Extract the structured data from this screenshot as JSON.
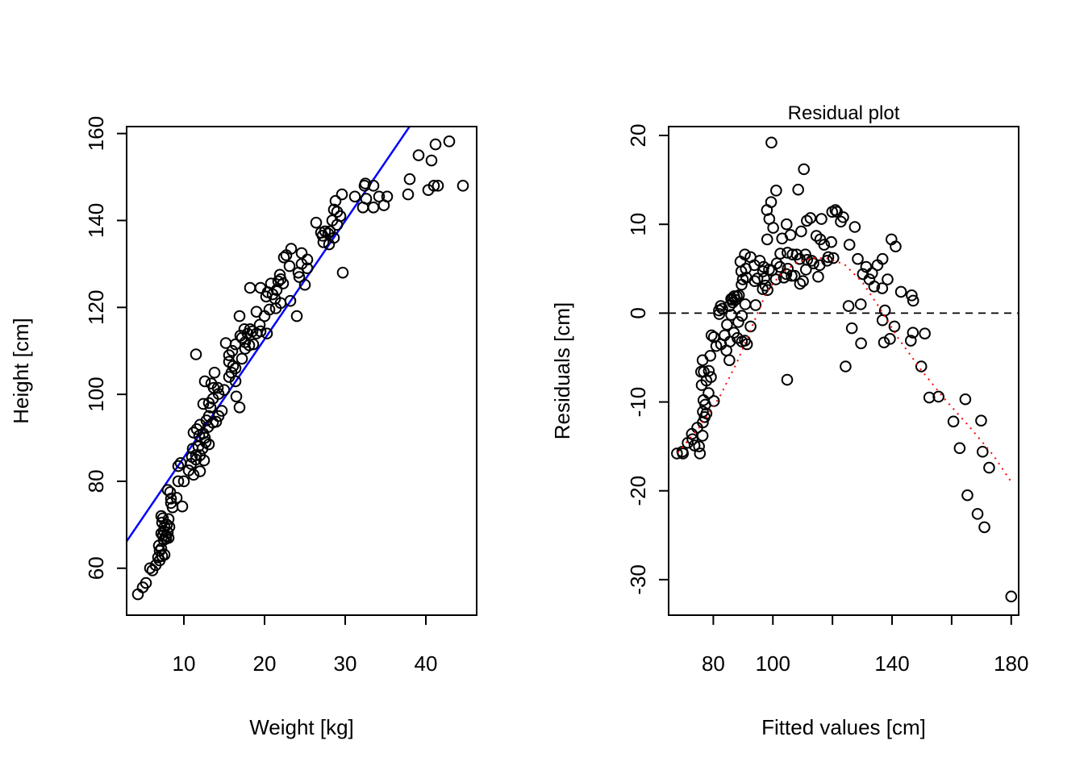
{
  "chart_data": [
    {
      "type": "scatter",
      "title": "",
      "xlabel": "Weight [kg]",
      "ylabel": "Height [cm]",
      "xlim": [
        2.9,
        46.3
      ],
      "ylim": [
        49.2,
        161.6
      ],
      "xticks": [
        10,
        20,
        30,
        40
      ],
      "yticks": [
        60,
        80,
        100,
        120,
        140,
        160
      ],
      "grid": false,
      "legend": "none",
      "regression_line": {
        "intercept": 58.3,
        "slope": 2.72,
        "color": "#0000FF"
      },
      "points": [
        [
          4.3,
          54
        ],
        [
          4.9,
          55.6
        ],
        [
          5.3,
          56.6
        ],
        [
          5.8,
          60
        ],
        [
          6.1,
          59.5
        ],
        [
          6.5,
          60.7
        ],
        [
          7.0,
          61.8
        ],
        [
          6.8,
          62.5
        ],
        [
          7.3,
          62.8
        ],
        [
          7.0,
          64
        ],
        [
          7.2,
          64.5
        ],
        [
          7.6,
          63.1
        ],
        [
          6.9,
          65.2
        ],
        [
          7.5,
          66.5
        ],
        [
          7.8,
          66.8
        ],
        [
          7.4,
          67.5
        ],
        [
          7.8,
          67.4
        ],
        [
          8.1,
          67
        ],
        [
          7.2,
          68
        ],
        [
          7.5,
          68.6
        ],
        [
          8.0,
          68.2
        ],
        [
          7.6,
          69.5
        ],
        [
          8.2,
          69.5
        ],
        [
          7.3,
          70.5
        ],
        [
          7.9,
          70
        ],
        [
          7.4,
          71.5
        ],
        [
          8.1,
          71.3
        ],
        [
          7.2,
          72
        ],
        [
          8.6,
          74
        ],
        [
          8.4,
          75
        ],
        [
          9.8,
          74.2
        ],
        [
          8.4,
          76
        ],
        [
          9.1,
          76.2
        ],
        [
          8.3,
          77.5
        ],
        [
          8.0,
          78
        ],
        [
          9.3,
          80
        ],
        [
          10.0,
          80
        ],
        [
          11.2,
          81.5
        ],
        [
          12.0,
          82.3
        ],
        [
          10.6,
          82.5
        ],
        [
          9.3,
          83.5
        ],
        [
          10.9,
          84
        ],
        [
          12.5,
          84.8
        ],
        [
          11.5,
          85
        ],
        [
          9.6,
          84.2
        ],
        [
          11.0,
          85.6
        ],
        [
          11.5,
          86
        ],
        [
          12.0,
          86
        ],
        [
          12.3,
          87.5
        ],
        [
          11.1,
          87.5
        ],
        [
          11.8,
          88
        ],
        [
          13.1,
          88.5
        ],
        [
          12.7,
          89
        ],
        [
          12.6,
          90
        ],
        [
          11.9,
          90.5
        ],
        [
          12.4,
          91
        ],
        [
          11.2,
          91.2
        ],
        [
          11.6,
          92
        ],
        [
          13.0,
          92.5
        ],
        [
          12.0,
          93
        ],
        [
          13.6,
          93.5
        ],
        [
          14.0,
          93.7
        ],
        [
          12.8,
          94
        ],
        [
          13.1,
          95
        ],
        [
          14.3,
          95
        ],
        [
          14.7,
          96.2
        ],
        [
          13.3,
          97
        ],
        [
          12.4,
          97.8
        ],
        [
          13.1,
          98
        ],
        [
          16.9,
          97
        ],
        [
          13.6,
          99
        ],
        [
          16.5,
          99.5
        ],
        [
          14.3,
          100.1
        ],
        [
          15.0,
          101
        ],
        [
          13.7,
          101.5
        ],
        [
          14.2,
          101.5
        ],
        [
          12.6,
          103
        ],
        [
          13.4,
          102.5
        ],
        [
          16.4,
          103
        ],
        [
          15.6,
          104
        ],
        [
          15.9,
          105
        ],
        [
          13.8,
          105
        ],
        [
          16.4,
          106
        ],
        [
          16.1,
          106.5
        ],
        [
          15.6,
          107.5
        ],
        [
          17.2,
          108.2
        ],
        [
          15.6,
          109
        ],
        [
          11.5,
          109.2
        ],
        [
          16.0,
          110
        ],
        [
          17.6,
          110.5
        ],
        [
          18.1,
          111.3
        ],
        [
          16.4,
          111.5
        ],
        [
          15.2,
          111.8
        ],
        [
          17.6,
          112
        ],
        [
          18.6,
          111.5
        ],
        [
          17.2,
          113
        ],
        [
          19.0,
          114
        ],
        [
          20.3,
          114
        ],
        [
          17.0,
          113.5
        ],
        [
          18.5,
          114.5
        ],
        [
          19.5,
          114.5
        ],
        [
          18.2,
          115
        ],
        [
          17.9,
          114
        ],
        [
          17.5,
          115
        ],
        [
          19.4,
          116
        ],
        [
          20.0,
          118
        ],
        [
          24.0,
          118
        ],
        [
          16.9,
          118
        ],
        [
          19.0,
          119
        ],
        [
          20.6,
          119.5
        ],
        [
          21.4,
          119.8
        ],
        [
          22.0,
          121
        ],
        [
          23.2,
          121.5
        ],
        [
          21.3,
          122
        ],
        [
          20.2,
          122.5
        ],
        [
          21.0,
          123
        ],
        [
          20.4,
          123.5
        ],
        [
          19.5,
          124.5
        ],
        [
          18.2,
          124.5
        ],
        [
          21.5,
          124
        ],
        [
          22.3,
          125.5
        ],
        [
          25.0,
          125.2
        ],
        [
          20.8,
          125.5
        ],
        [
          21.7,
          126
        ],
        [
          22.0,
          126.5
        ],
        [
          24.3,
          127
        ],
        [
          21.9,
          127.5
        ],
        [
          24.2,
          128
        ],
        [
          29.7,
          128
        ],
        [
          23.1,
          129.5
        ],
        [
          25.3,
          129
        ],
        [
          24.6,
          130
        ],
        [
          25.3,
          131
        ],
        [
          22.4,
          131.5
        ],
        [
          22.7,
          132
        ],
        [
          24.6,
          132.5
        ],
        [
          23.3,
          133.5
        ],
        [
          28.0,
          134.5
        ],
        [
          27.3,
          135
        ],
        [
          28.6,
          136
        ],
        [
          27.2,
          136.5
        ],
        [
          27.9,
          137
        ],
        [
          27.5,
          137.5
        ],
        [
          28.1,
          137.5
        ],
        [
          27.0,
          137.2
        ],
        [
          29.0,
          139
        ],
        [
          26.4,
          139.5
        ],
        [
          28.4,
          140
        ],
        [
          29.4,
          141
        ],
        [
          29.0,
          142
        ],
        [
          28.6,
          142.5
        ],
        [
          33.5,
          143
        ],
        [
          32.2,
          143
        ],
        [
          34.8,
          143.5
        ],
        [
          28.8,
          144.5
        ],
        [
          32.6,
          145
        ],
        [
          34.2,
          145.5
        ],
        [
          35.2,
          145.5
        ],
        [
          31.2,
          145.5
        ],
        [
          29.6,
          146
        ],
        [
          37.8,
          146
        ],
        [
          38.0,
          149.5
        ],
        [
          32.4,
          148
        ],
        [
          32.5,
          148.5
        ],
        [
          33.5,
          148
        ],
        [
          40.3,
          147
        ],
        [
          41.0,
          148
        ],
        [
          41.5,
          148
        ],
        [
          44.6,
          148
        ],
        [
          39.1,
          155
        ],
        [
          40.7,
          153.8
        ],
        [
          41.2,
          157.5
        ],
        [
          42.9,
          158.2
        ]
      ]
    },
    {
      "type": "scatter",
      "title": "Residual plot",
      "xlabel": "Fitted values [cm]",
      "ylabel": "Residuals [cm]",
      "xlim": [
        65,
        182.5
      ],
      "ylim": [
        -34,
        21
      ],
      "xticks": [
        80,
        100,
        120,
        140,
        160,
        180
      ],
      "xtick_labels": [
        "80",
        "100",
        "",
        "140",
        "",
        "180"
      ],
      "yticks": [
        -30,
        -20,
        -10,
        0,
        10,
        20
      ],
      "grid": false,
      "legend": "none",
      "reference_line": {
        "y": 0,
        "style": "dashed",
        "color": "#000000"
      },
      "smoother": {
        "style": "dotted",
        "color": "#FF0000",
        "x": [
          68,
          75,
          82,
          88,
          93,
          98,
          103,
          108,
          113,
          118,
          124,
          130,
          136,
          142,
          150,
          158,
          166,
          174,
          180
        ],
        "y": [
          -15.7,
          -13,
          -9.5,
          -5.5,
          -1.5,
          2.5,
          4.5,
          5.7,
          6.2,
          6.2,
          5.5,
          3.5,
          0.5,
          -2.8,
          -6.5,
          -9.8,
          -12.8,
          -16,
          -19
        ]
      },
      "points": [
        [
          67.8,
          -15.8
        ],
        [
          69.6,
          -15.6
        ],
        [
          69.8,
          -15.8
        ],
        [
          71.4,
          -14.6
        ],
        [
          73.0,
          -14.2
        ],
        [
          73.7,
          -14.9
        ],
        [
          75.5,
          -15.8
        ],
        [
          75.2,
          -15
        ],
        [
          76.4,
          -13.8
        ],
        [
          72.8,
          -13.6
        ],
        [
          74.6,
          -12.9
        ],
        [
          76.5,
          -12.3
        ],
        [
          77.1,
          -11.7
        ],
        [
          77.7,
          -11.3
        ],
        [
          76.5,
          -11.1
        ],
        [
          80.2,
          -9.9
        ],
        [
          76.7,
          -9.8
        ],
        [
          77.3,
          -10.3
        ],
        [
          78.4,
          -9
        ],
        [
          76.1,
          -8.1
        ],
        [
          77.7,
          -7.6
        ],
        [
          79.2,
          -7.2
        ],
        [
          75.9,
          -6.6
        ],
        [
          76.8,
          -6.6
        ],
        [
          78.5,
          -6.5
        ],
        [
          76.4,
          -5.3
        ],
        [
          79.0,
          -4.8
        ],
        [
          85.4,
          -5.3
        ],
        [
          81.0,
          -3.7
        ],
        [
          82.6,
          -3.5
        ],
        [
          84.4,
          -4.2
        ],
        [
          85.6,
          -3.2
        ],
        [
          88.1,
          -2.8
        ],
        [
          80.2,
          -2.7
        ],
        [
          79.4,
          -2.5
        ],
        [
          83.8,
          -2.5
        ],
        [
          86.9,
          -2.2
        ],
        [
          89.6,
          -3.2
        ],
        [
          90.6,
          -3.1
        ],
        [
          91.3,
          -3.5
        ],
        [
          84.6,
          -1.3
        ],
        [
          92.5,
          -1.5
        ],
        [
          89.6,
          -0.3
        ],
        [
          88.4,
          -1.0
        ],
        [
          86.0,
          -0.2
        ],
        [
          81.9,
          0.3
        ],
        [
          82.5,
          0.8
        ],
        [
          82.0,
          -0.1
        ],
        [
          83.0,
          0.5
        ],
        [
          85.4,
          0.8
        ],
        [
          86.5,
          1.2
        ],
        [
          87.4,
          1.5
        ],
        [
          87.0,
          1.9
        ],
        [
          86.0,
          1.6
        ],
        [
          87.9,
          1.9
        ],
        [
          88.6,
          2
        ],
        [
          86.3,
          1.5
        ],
        [
          90.7,
          1.0
        ],
        [
          94.2,
          0.9
        ],
        [
          89.5,
          3.2
        ],
        [
          89.9,
          3.8
        ],
        [
          89.4,
          4.7
        ],
        [
          91.1,
          4
        ],
        [
          90.9,
          5
        ],
        [
          93.9,
          3.6
        ],
        [
          94.8,
          3.9
        ],
        [
          97.1,
          3.9
        ],
        [
          96.7,
          4.7
        ],
        [
          89.1,
          5.8
        ],
        [
          90.6,
          6.6
        ],
        [
          92.5,
          6.3
        ],
        [
          93.8,
          5.4
        ],
        [
          95.6,
          5.9
        ],
        [
          96.9,
          5.2
        ],
        [
          97.5,
          3.1
        ],
        [
          98.7,
          4.9
        ],
        [
          99.6,
          4.8
        ],
        [
          102.4,
          5.2
        ],
        [
          101.3,
          5.6
        ],
        [
          101.0,
          3.8
        ],
        [
          98.2,
          2.6
        ],
        [
          96.6,
          2.7
        ],
        [
          104.5,
          4.4
        ],
        [
          103.7,
          4.0
        ],
        [
          105.0,
          5.0
        ],
        [
          106.3,
          4.2
        ],
        [
          107.3,
          4.2
        ],
        [
          109.1,
          3.3
        ],
        [
          110.1,
          3.6
        ],
        [
          111.1,
          4.9
        ],
        [
          102.5,
          6.7
        ],
        [
          104.9,
          6.8
        ],
        [
          106.6,
          6.6
        ],
        [
          108.0,
          6.6
        ],
        [
          109.0,
          6.1
        ],
        [
          110.9,
          6.6
        ],
        [
          111.5,
          6.0
        ],
        [
          113.0,
          5.9
        ],
        [
          113.6,
          5.6
        ],
        [
          115.2,
          4.1
        ],
        [
          115.7,
          5.4
        ],
        [
          118.2,
          5.9
        ],
        [
          118.6,
          6.3
        ],
        [
          120.3,
          6.2
        ],
        [
          117.2,
          7.7
        ],
        [
          115.9,
          8.3
        ],
        [
          114.6,
          8.7
        ],
        [
          119.6,
          8.0
        ],
        [
          98.1,
          8.3
        ],
        [
          103.1,
          8.4
        ],
        [
          105.9,
          8.8
        ],
        [
          109.5,
          9.2
        ],
        [
          111.4,
          10.4
        ],
        [
          112.6,
          10.7
        ],
        [
          116.3,
          10.6
        ],
        [
          119.9,
          11.4
        ],
        [
          121.0,
          11.6
        ],
        [
          122.8,
          10.3
        ],
        [
          127.5,
          9.7
        ],
        [
          121.5,
          11.4
        ],
        [
          104.6,
          10.0
        ],
        [
          100.1,
          9.6
        ],
        [
          98.8,
          10.6
        ],
        [
          98.0,
          11.6
        ],
        [
          99.4,
          12.5
        ],
        [
          101.1,
          13.8
        ],
        [
          108.5,
          13.9
        ],
        [
          110.4,
          16.2
        ],
        [
          99.5,
          19.2
        ],
        [
          123.6,
          10.8
        ],
        [
          125.7,
          7.7
        ],
        [
          128.5,
          6.1
        ],
        [
          130.2,
          4.4
        ],
        [
          131.3,
          5.2
        ],
        [
          133.3,
          4.5
        ],
        [
          135.1,
          5.4
        ],
        [
          136.8,
          6.1
        ],
        [
          139.8,
          8.3
        ],
        [
          141.2,
          7.5
        ],
        [
          132.4,
          3.8
        ],
        [
          134.0,
          3.0
        ],
        [
          136.7,
          2.8
        ],
        [
          138.5,
          3.8
        ],
        [
          143.0,
          2.4
        ],
        [
          146.6,
          2.0
        ],
        [
          147.1,
          1.4
        ],
        [
          125.4,
          0.8
        ],
        [
          129.5,
          1.0
        ],
        [
          137.6,
          0.3
        ],
        [
          136.8,
          -0.8
        ],
        [
          140.8,
          -1.5
        ],
        [
          139.3,
          -2.9
        ],
        [
          137.3,
          -3.3
        ],
        [
          129.6,
          -3.4
        ],
        [
          126.5,
          -1.7
        ],
        [
          124.4,
          -6.0
        ],
        [
          104.8,
          -7.5
        ],
        [
          147.0,
          -2.2
        ],
        [
          151.0,
          -2.3
        ],
        [
          146.3,
          -3.1
        ],
        [
          149.8,
          -6.0
        ],
        [
          152.5,
          -9.5
        ],
        [
          155.6,
          -9.4
        ],
        [
          160.6,
          -12.2
        ],
        [
          162.7,
          -15.2
        ],
        [
          164.6,
          -9.7
        ],
        [
          169.9,
          -12.1
        ],
        [
          170.4,
          -15.6
        ],
        [
          172.6,
          -17.4
        ],
        [
          165.3,
          -20.5
        ],
        [
          168.7,
          -22.6
        ],
        [
          171.0,
          -24.1
        ],
        [
          180.0,
          -31.9
        ]
      ]
    }
  ]
}
